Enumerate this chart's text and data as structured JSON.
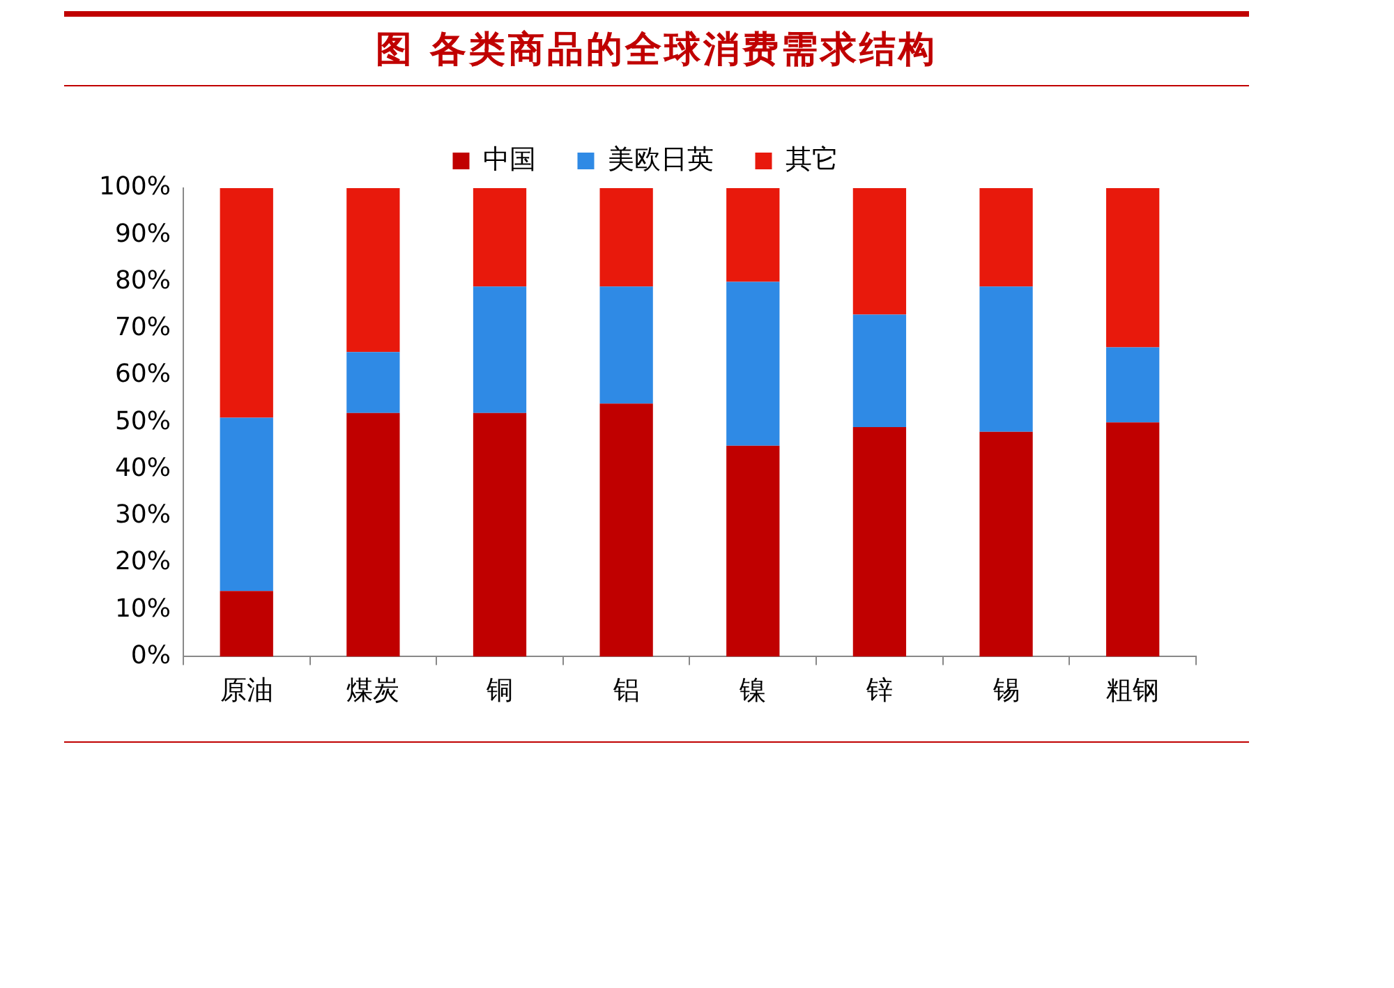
{
  "chart_data": {
    "type": "bar",
    "title": "图  各类商品的全球消费需求结构",
    "stacked": true,
    "categories": [
      "原油",
      "煤炭",
      "铜",
      "铝",
      "镍",
      "锌",
      "锡",
      "粗钢"
    ],
    "series": [
      {
        "name": "中国",
        "color": "#c00000",
        "values": [
          14,
          52,
          52,
          54,
          45,
          49,
          48,
          50
        ]
      },
      {
        "name": "美欧日英",
        "color": "#2f8ae5",
        "values": [
          37,
          13,
          27,
          25,
          35,
          24,
          31,
          16
        ]
      },
      {
        "name": "其它",
        "color": "#e8190c",
        "values": [
          49,
          35,
          21,
          21,
          20,
          27,
          21,
          34
        ]
      }
    ],
    "ylim": [
      0,
      100
    ],
    "yticks": [
      {
        "value": 0,
        "label": "0%"
      },
      {
        "value": 10,
        "label": "10%"
      },
      {
        "value": 20,
        "label": "20%"
      },
      {
        "value": 30,
        "label": "30%"
      },
      {
        "value": 40,
        "label": "40%"
      },
      {
        "value": 50,
        "label": "50%"
      },
      {
        "value": 60,
        "label": "60%"
      },
      {
        "value": 70,
        "label": "70%"
      },
      {
        "value": 80,
        "label": "80%"
      },
      {
        "value": 90,
        "label": "90%"
      },
      {
        "value": 100,
        "label": "100%"
      }
    ],
    "grid": false,
    "legend": "top"
  }
}
